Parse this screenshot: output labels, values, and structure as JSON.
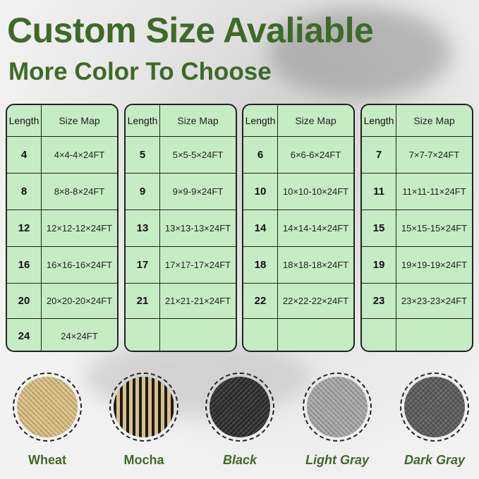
{
  "title": "Custom Size Avaliable",
  "subtitle": "More Color To Choose",
  "table_header": {
    "length": "Length",
    "size_map": "Size Map"
  },
  "tables": [
    {
      "rows": [
        {
          "length": "4",
          "size": "4×4-4×24FT"
        },
        {
          "length": "8",
          "size": "8×8-8×24FT"
        },
        {
          "length": "12",
          "size": "12×12-12×24FT"
        },
        {
          "length": "16",
          "size": "16×16-16×24FT"
        },
        {
          "length": "20",
          "size": "20×20-20×24FT"
        },
        {
          "length": "24",
          "size": "24×24FT"
        }
      ]
    },
    {
      "rows": [
        {
          "length": "5",
          "size": "5×5-5×24FT"
        },
        {
          "length": "9",
          "size": "9×9-9×24FT"
        },
        {
          "length": "13",
          "size": "13×13-13×24FT"
        },
        {
          "length": "17",
          "size": "17×17-17×24FT"
        },
        {
          "length": "21",
          "size": "21×21-21×24FT"
        },
        {
          "length": "",
          "size": ""
        }
      ]
    },
    {
      "rows": [
        {
          "length": "6",
          "size": "6×6-6×24FT"
        },
        {
          "length": "10",
          "size": "10×10-10×24FT"
        },
        {
          "length": "14",
          "size": "14×14-14×24FT"
        },
        {
          "length": "18",
          "size": "18×18-18×24FT"
        },
        {
          "length": "22",
          "size": "22×22-22×24FT"
        },
        {
          "length": "",
          "size": ""
        }
      ]
    },
    {
      "rows": [
        {
          "length": "7",
          "size": "7×7-7×24FT"
        },
        {
          "length": "11",
          "size": "11×11-11×24FT"
        },
        {
          "length": "15",
          "size": "15×15-15×24FT"
        },
        {
          "length": "19",
          "size": "19×19-19×24FT"
        },
        {
          "length": "23",
          "size": "23×23-23×24FT"
        },
        {
          "length": "",
          "size": ""
        }
      ]
    }
  ],
  "colors": [
    {
      "name": "Wheat",
      "swatch": "#dcc184",
      "italic": false
    },
    {
      "name": "Mocha",
      "swatch": "#8a7350",
      "italic": false
    },
    {
      "name": "Black",
      "swatch": "#2e2e2e",
      "italic": true
    },
    {
      "name": "Light Gray",
      "swatch": "#a9a9a9",
      "italic": true
    },
    {
      "name": "Dark Gray",
      "swatch": "#5c5c5c",
      "italic": true
    }
  ],
  "accent": "#3e6a27",
  "table_fill": "#c6ecc3"
}
